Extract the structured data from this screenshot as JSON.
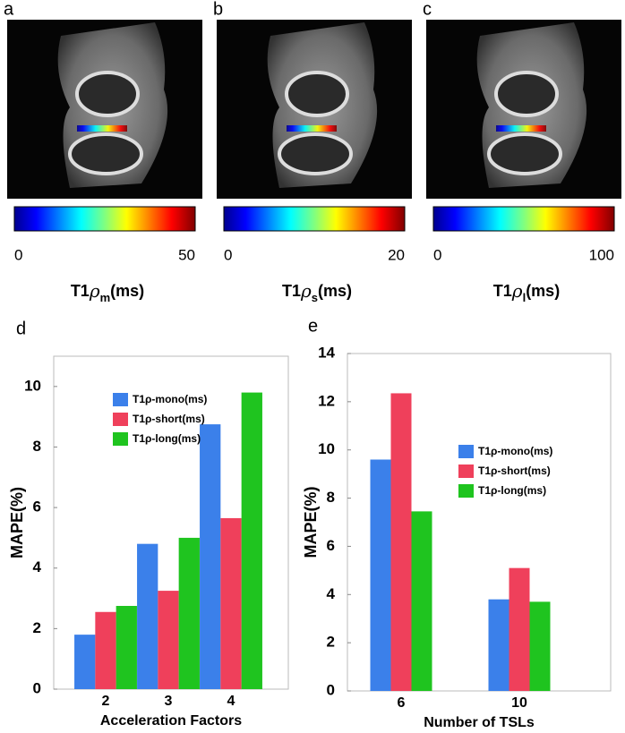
{
  "panels": [
    {
      "label": "a",
      "ticks": [
        0,
        50
      ],
      "title": {
        "main": "T1",
        "symbol": "ρ",
        "sub": "m",
        "unit": "(ms)"
      }
    },
    {
      "label": "b",
      "ticks": [
        0,
        20
      ],
      "title": {
        "main": "T1",
        "symbol": "ρ",
        "sub": "s",
        "unit": "(ms)"
      }
    },
    {
      "label": "c",
      "ticks": [
        0,
        100
      ],
      "title": {
        "main": "T1",
        "symbol": "ρ",
        "sub": "l",
        "unit": "(ms)"
      }
    }
  ],
  "chart_data": [
    {
      "type": "bar",
      "panel_label": "d",
      "xlabel": "Acceleration Factors",
      "ylabel": "MAPE(%)",
      "categories": [
        "2",
        "3",
        "4"
      ],
      "series": [
        {
          "name": "T1ρ-mono(ms)",
          "color": "#3b80ea",
          "values": [
            1.8,
            4.8,
            8.75
          ]
        },
        {
          "name": "T1ρ-short(ms)",
          "color": "#ef405b",
          "values": [
            2.55,
            3.25,
            5.65
          ]
        },
        {
          "name": "T1ρ-long(ms)",
          "color": "#1fc41f",
          "values": [
            2.75,
            5.0,
            9.8
          ]
        }
      ],
      "ylim": [
        0,
        11
      ],
      "yticks": [
        0,
        2,
        4,
        6,
        8,
        10
      ],
      "legend": "top-right"
    },
    {
      "type": "bar",
      "panel_label": "e",
      "xlabel": "Number of TSLs",
      "ylabel": "MAPE(%)",
      "categories": [
        "6",
        "10"
      ],
      "series": [
        {
          "name": "T1ρ-mono(ms)",
          "color": "#3b80ea",
          "values": [
            9.6,
            3.8
          ]
        },
        {
          "name": "T1ρ-short(ms)",
          "color": "#ef405b",
          "values": [
            12.35,
            5.1
          ]
        },
        {
          "name": "T1ρ-long(ms)",
          "color": "#1fc41f",
          "values": [
            7.45,
            3.7
          ]
        }
      ],
      "ylim": [
        0,
        14
      ],
      "yticks": [
        0,
        2,
        4,
        6,
        8,
        10,
        12,
        14
      ],
      "legend": "top-right"
    }
  ]
}
